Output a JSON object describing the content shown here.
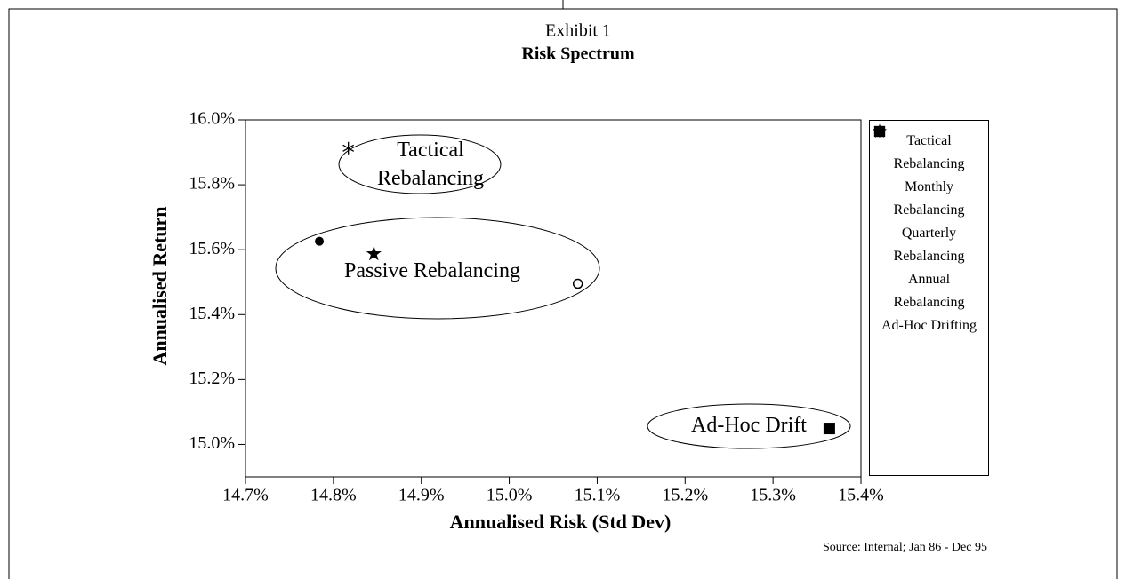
{
  "chart_data": {
    "type": "scatter",
    "title": "Exhibit 1",
    "subtitle": "Risk Spectrum",
    "x_label": "Annualised Risk (Std Dev)",
    "y_label": "Annualised Return",
    "source": "Source: Internal; Jan 86 - Dec 95",
    "xlim": [
      14.7,
      15.4
    ],
    "ylim": [
      14.9,
      16.0
    ],
    "xticks": [
      {
        "value": 14.7,
        "label": "14.7%"
      },
      {
        "value": 14.8,
        "label": "14.8%"
      },
      {
        "value": 14.9,
        "label": "14.9%"
      },
      {
        "value": 15.0,
        "label": "15.0%"
      },
      {
        "value": 15.1,
        "label": "15.1%"
      },
      {
        "value": 15.2,
        "label": "15.2%"
      },
      {
        "value": 15.3,
        "label": "15.3%"
      },
      {
        "value": 15.4,
        "label": "15.4%"
      }
    ],
    "yticks": [
      {
        "value": 15.0,
        "label": "15.0%"
      },
      {
        "value": 15.2,
        "label": "15.2%"
      },
      {
        "value": 15.4,
        "label": "15.4%"
      },
      {
        "value": 15.6,
        "label": "15.6%"
      },
      {
        "value": 15.8,
        "label": "15.8%"
      },
      {
        "value": 16.0,
        "label": "16.0%"
      }
    ],
    "series": [
      {
        "name": "Tactical Rebalancing",
        "color": "#000000",
        "marker": "asterisk",
        "x": [
          14.817
        ],
        "values": [
          15.913
        ]
      },
      {
        "name": "Monthly Rebalancing",
        "color": "#000000",
        "marker": "star",
        "x": [
          14.846
        ],
        "values": [
          15.587
        ]
      },
      {
        "name": "Quarterly Rebalancing",
        "color": "#000000",
        "marker": "circle",
        "x": [
          14.784
        ],
        "values": [
          15.626
        ]
      },
      {
        "name": "Annual Rebalancing",
        "color": "#000000",
        "marker": "open-circle",
        "x": [
          15.078
        ],
        "values": [
          15.495
        ]
      },
      {
        "name": "Ad-Hoc Drifting",
        "color": "#000000",
        "marker": "square",
        "x": [
          15.364
        ],
        "values": [
          15.049
        ]
      }
    ],
    "annotations": [
      {
        "text": "Tactical Rebalancing"
      },
      {
        "text": "Passive Rebalancing"
      },
      {
        "text": "Ad-Hoc Drift"
      }
    ],
    "legend": "right"
  }
}
